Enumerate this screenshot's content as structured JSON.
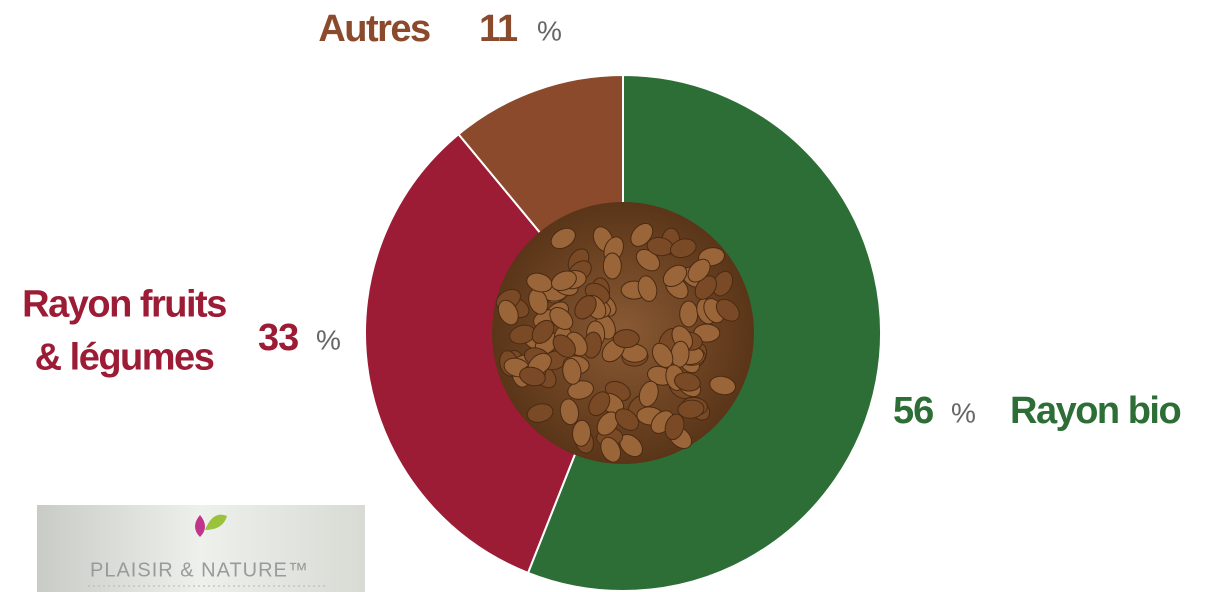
{
  "chart_data": {
    "type": "donut",
    "categories": [
      "Rayon bio",
      "Rayon fruits\n& légumes",
      "Autres"
    ],
    "values": [
      56,
      33,
      11
    ],
    "unit": "%",
    "colors": [
      "#2d6e37",
      "#9d1c35",
      "#8b4a2b"
    ]
  },
  "logo": "PLAISIR & NATURE™"
}
